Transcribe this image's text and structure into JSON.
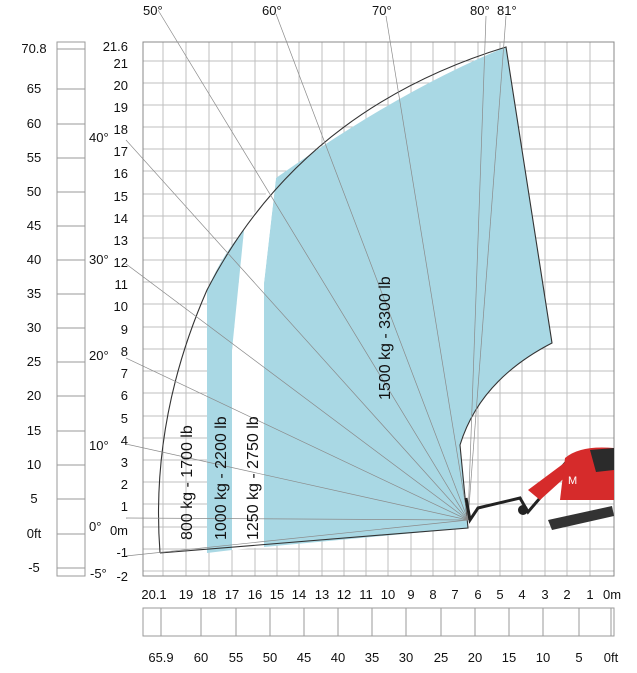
{
  "chart_data": {
    "type": "load-chart",
    "y_meters_ticks": [
      "21.6",
      "21",
      "20",
      "19",
      "18",
      "17",
      "16",
      "15",
      "14",
      "13",
      "12",
      "11",
      "10",
      "9",
      "8",
      "7",
      "6",
      "5",
      "4",
      "3",
      "2",
      "1",
      "0m",
      "-1",
      "-2"
    ],
    "x_meters_ticks": [
      "20.1",
      "19",
      "18",
      "17",
      "16",
      "15",
      "14",
      "13",
      "12",
      "11",
      "10",
      "9",
      "8",
      "7",
      "6",
      "5",
      "4",
      "3",
      "2",
      "1",
      "0m"
    ],
    "y_feet_ticks": [
      "70.8",
      "65",
      "60",
      "55",
      "50",
      "45",
      "40",
      "35",
      "30",
      "25",
      "20",
      "15",
      "10",
      "5",
      "0ft",
      "-5"
    ],
    "x_feet_ticks": [
      "65.9",
      "60",
      "55",
      "50",
      "45",
      "40",
      "35",
      "30",
      "25",
      "20",
      "15",
      "10",
      "5",
      "0ft"
    ],
    "boom_angles": [
      "50°",
      "60°",
      "70°",
      "80°",
      "81°",
      "40°",
      "30°",
      "20°",
      "10°",
      "0°",
      "-5°"
    ],
    "zones": [
      {
        "label": "800 kg - 1700 lb",
        "color": "#ffffff"
      },
      {
        "label": "1000 kg - 2200 lb",
        "color": "#a9d8e4"
      },
      {
        "label": "1250 kg - 2750 lb",
        "color": "#ffffff"
      },
      {
        "label": "1500 kg - 3300 lb",
        "color": "#a9d8e4"
      }
    ],
    "colors": {
      "zone_fill": "#a9d8e4",
      "grid": "#bfbfbf",
      "machine": "#d62b2b"
    }
  }
}
